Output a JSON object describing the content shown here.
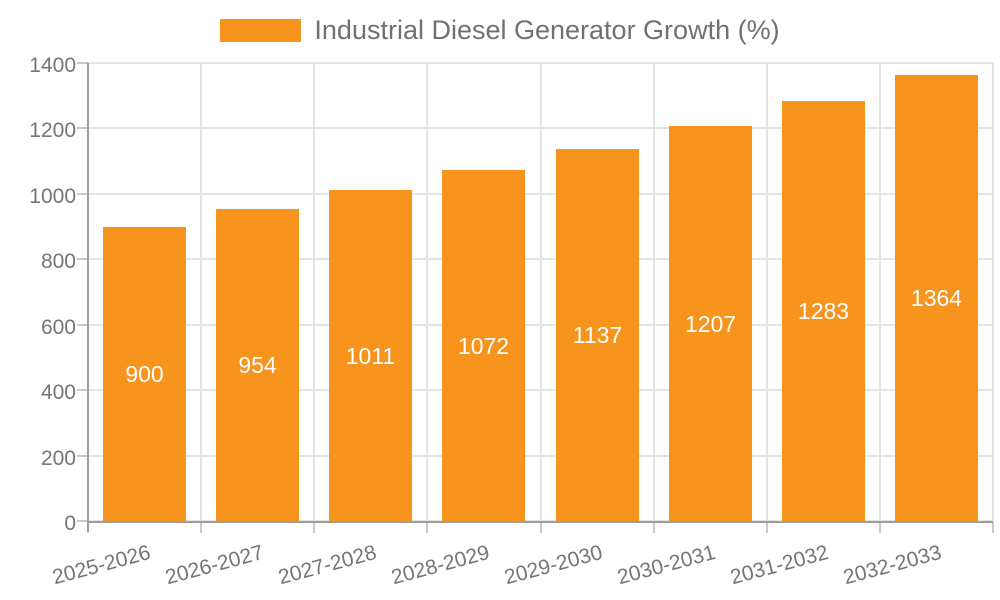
{
  "chart_data": {
    "type": "bar",
    "title": "Industrial Diesel Generator Growth (%)",
    "legend_position": "top-center",
    "categories": [
      "2025-2026",
      "2026-2027",
      "2027-2028",
      "2028-2029",
      "2029-2030",
      "2030-2031",
      "2031-2032",
      "2032-2033"
    ],
    "values": [
      900,
      954,
      1011,
      1072,
      1137,
      1207,
      1283,
      1364
    ],
    "bar_value_labels": [
      "900",
      "954",
      "1011",
      "1072",
      "1137",
      "1207",
      "1283",
      "1364"
    ],
    "xlabel": "",
    "ylabel": "",
    "ylim": [
      0,
      1400
    ],
    "ytick_step": 200,
    "ytick_labels": [
      "0",
      "200",
      "400",
      "600",
      "800",
      "1000",
      "1200",
      "1400"
    ],
    "grid": true,
    "colors": {
      "bar": "#f7941e",
      "grid": "#e4e4e4",
      "axis": "#9e9e9e",
      "tick": "#c9c9c9",
      "axis_text": "#757575",
      "legend_text": "#717171",
      "bar_label_text": "#ffffff",
      "background": "#ffffff"
    }
  }
}
